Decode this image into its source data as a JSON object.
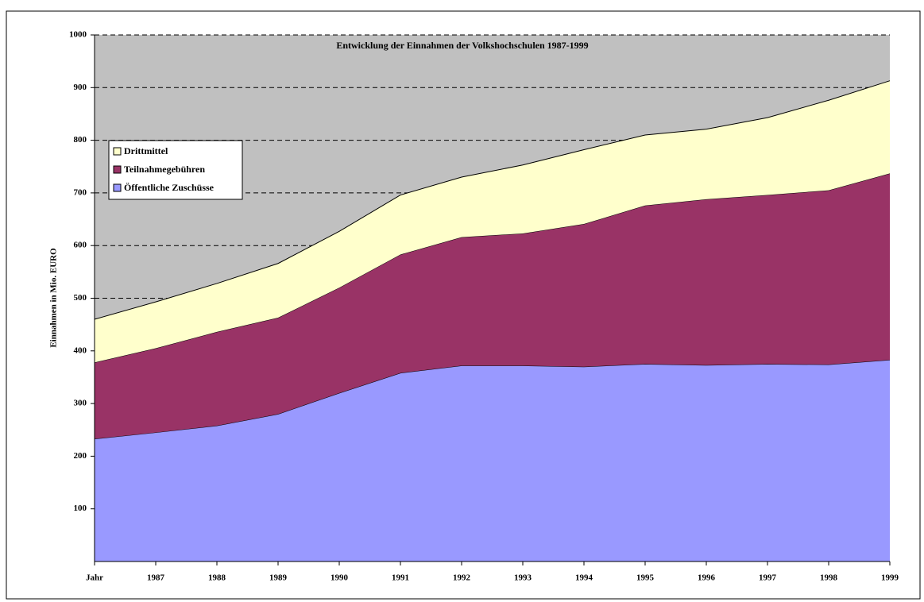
{
  "chart_data": {
    "type": "stacked-area",
    "title": "Entwicklung der Einnahmen der Volkshochschulen 1987-1999",
    "y_label": "Einnahmen in Mio. EURO",
    "categories": [
      "Jahr",
      "1987",
      "1988",
      "1989",
      "1990",
      "1991",
      "1992",
      "1993",
      "1994",
      "1995",
      "1996",
      "1997",
      "1998",
      "1999"
    ],
    "series": [
      {
        "name": "Öffentliche Zuschüsse",
        "color": "#9999ff",
        "values": [
          233,
          245,
          258,
          280,
          320,
          358,
          372,
          372,
          370,
          375,
          373,
          375,
          374,
          383
        ]
      },
      {
        "name": "Teilnahmegebühren",
        "color": "#993366",
        "values": [
          145,
          160,
          178,
          183,
          200,
          225,
          244,
          251,
          271,
          301,
          315,
          321,
          331,
          354
        ]
      },
      {
        "name": "Drittmittel",
        "color": "#ffffcc",
        "values": [
          82,
          88,
          92,
          103,
          107,
          113,
          114,
          130,
          141,
          134,
          133,
          147,
          171,
          176
        ]
      }
    ],
    "ylim": [
      0,
      1000
    ],
    "yticks": [
      100,
      200,
      300,
      400,
      500,
      600,
      700,
      800,
      900,
      1000
    ],
    "grid": true,
    "background": "#c0c0c0"
  }
}
